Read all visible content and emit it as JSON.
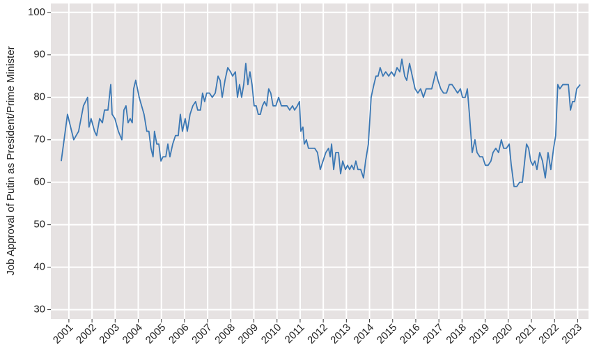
{
  "chart_data": {
    "type": "line",
    "y_label": "Job Approval of Putin as President/Prime Minister",
    "xlim": [
      2000.22,
      2023.47
    ],
    "ylim": [
      27.8,
      102.1
    ],
    "xticks": [
      2001,
      2002,
      2003,
      2004,
      2005,
      2006,
      2007,
      2008,
      2009,
      2010,
      2011,
      2012,
      2013,
      2014,
      2015,
      2016,
      2017,
      2018,
      2019,
      2020,
      2021,
      2022,
      2023
    ],
    "yticks": [
      30,
      40,
      50,
      60,
      70,
      80,
      90,
      100
    ],
    "grid": true,
    "x": [
      2000.67,
      2000.94,
      2001.21,
      2001.42,
      2001.63,
      2001.81,
      2001.87,
      2001.96,
      2002.11,
      2002.2,
      2002.33,
      2002.45,
      2002.54,
      2002.69,
      2002.81,
      2002.87,
      2002.99,
      2003.14,
      2003.29,
      2003.38,
      2003.47,
      2003.56,
      2003.65,
      2003.74,
      2003.8,
      2003.89,
      2004.04,
      2004.25,
      2004.37,
      2004.46,
      2004.55,
      2004.64,
      2004.7,
      2004.8,
      2004.89,
      2004.98,
      2005.07,
      2005.19,
      2005.28,
      2005.37,
      2005.49,
      2005.61,
      2005.73,
      2005.82,
      2005.91,
      2006.03,
      2006.12,
      2006.24,
      2006.36,
      2006.48,
      2006.57,
      2006.69,
      2006.78,
      2006.87,
      2006.96,
      2007.08,
      2007.2,
      2007.33,
      2007.45,
      2007.54,
      2007.63,
      2007.75,
      2007.87,
      2007.99,
      2008.08,
      2008.2,
      2008.29,
      2008.38,
      2008.47,
      2008.56,
      2008.65,
      2008.74,
      2008.83,
      2008.92,
      2009.01,
      2009.1,
      2009.19,
      2009.28,
      2009.37,
      2009.46,
      2009.55,
      2009.64,
      2009.73,
      2009.83,
      2009.95,
      2010.07,
      2010.19,
      2010.31,
      2010.43,
      2010.55,
      2010.67,
      2010.76,
      2010.88,
      2010.97,
      2011.03,
      2011.12,
      2011.18,
      2011.27,
      2011.36,
      2011.48,
      2011.63,
      2011.75,
      2011.87,
      2011.99,
      2012.11,
      2012.23,
      2012.3,
      2012.36,
      2012.45,
      2012.54,
      2012.66,
      2012.75,
      2012.84,
      2012.96,
      2013.05,
      2013.14,
      2013.23,
      2013.32,
      2013.41,
      2013.5,
      2013.62,
      2013.74,
      2013.83,
      2013.95,
      2014.07,
      2014.19,
      2014.28,
      2014.37,
      2014.46,
      2014.58,
      2014.7,
      2014.83,
      2014.95,
      2015.07,
      2015.19,
      2015.31,
      2015.4,
      2015.52,
      2015.61,
      2015.73,
      2015.85,
      2015.97,
      2016.09,
      2016.21,
      2016.33,
      2016.45,
      2016.57,
      2016.69,
      2016.78,
      2016.87,
      2016.96,
      2017.08,
      2017.2,
      2017.33,
      2017.45,
      2017.57,
      2017.69,
      2017.81,
      2017.93,
      2018.02,
      2018.14,
      2018.23,
      2018.32,
      2018.44,
      2018.56,
      2018.65,
      2018.77,
      2018.89,
      2019.01,
      2019.13,
      2019.25,
      2019.34,
      2019.46,
      2019.58,
      2019.7,
      2019.8,
      2019.92,
      2020.04,
      2020.13,
      2020.25,
      2020.37,
      2020.49,
      2020.61,
      2020.73,
      2020.79,
      2020.88,
      2020.97,
      2021.06,
      2021.15,
      2021.24,
      2021.36,
      2021.48,
      2021.6,
      2021.72,
      2021.84,
      2021.96,
      2022.05,
      2022.14,
      2022.23,
      2022.36,
      2022.48,
      2022.6,
      2022.69,
      2022.78,
      2022.87,
      2022.96,
      2023.11
    ],
    "series": [
      {
        "color": "#3b78b4",
        "values": [
          65,
          76,
          70,
          72,
          78,
          80,
          73,
          75,
          72,
          71,
          75,
          74,
          77,
          77,
          83,
          76,
          75,
          72,
          70,
          77,
          78,
          74,
          75,
          74,
          82,
          84,
          80,
          76,
          72,
          72,
          68,
          66,
          72,
          69,
          69,
          65,
          66,
          66,
          69,
          66,
          69,
          71,
          71,
          76,
          72,
          75,
          72,
          76,
          78,
          79,
          77,
          77,
          81,
          79,
          81,
          81,
          80,
          81,
          85,
          84,
          80,
          84,
          87,
          86,
          85,
          86,
          80,
          83,
          80,
          83,
          88,
          83,
          86,
          83,
          78,
          78,
          76,
          76,
          78,
          79,
          78,
          82,
          81,
          78,
          78,
          80,
          78,
          78,
          78,
          77,
          78,
          77,
          78,
          79,
          72,
          73,
          69,
          70,
          68,
          68,
          68,
          67,
          63,
          65,
          67,
          68,
          66,
          69,
          63,
          67,
          67,
          62,
          65,
          63,
          64,
          63,
          64,
          63,
          65,
          63,
          63,
          61,
          65,
          69,
          80,
          83,
          85,
          85,
          87,
          85,
          86,
          85,
          86,
          85,
          87,
          86,
          89,
          85,
          84,
          88,
          85,
          82,
          81,
          82,
          80,
          82,
          82,
          82,
          84,
          86,
          84,
          82,
          81,
          81,
          83,
          83,
          82,
          81,
          82,
          80,
          80,
          82,
          76,
          67,
          70,
          67,
          66,
          66,
          64,
          64,
          65,
          67,
          68,
          67,
          70,
          68,
          68,
          69,
          64,
          59,
          59,
          60,
          60,
          66,
          69,
          68,
          65,
          64,
          65,
          63,
          67,
          65,
          61,
          67,
          63,
          68,
          71,
          83,
          82,
          83,
          83,
          83,
          77,
          79,
          79,
          82,
          83
        ]
      }
    ]
  }
}
